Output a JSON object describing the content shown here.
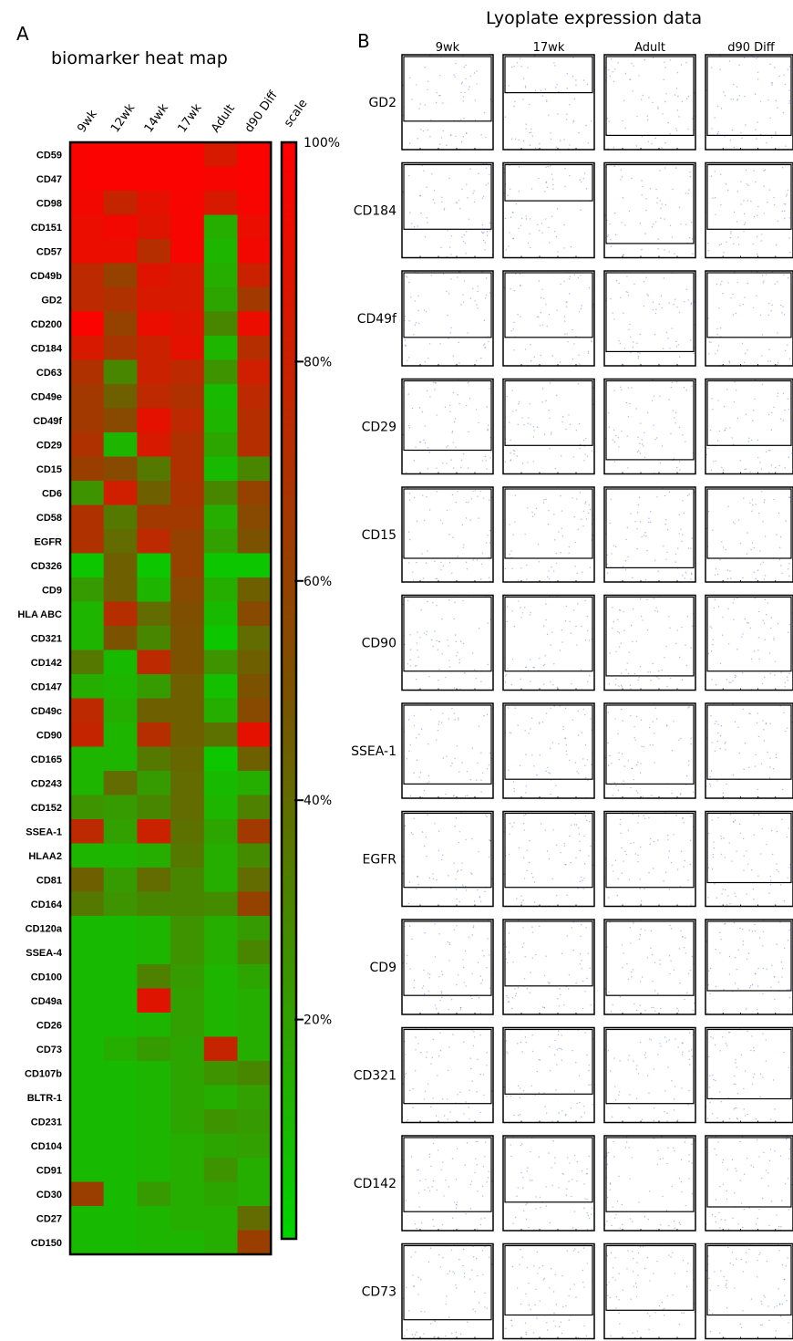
{
  "figure": {
    "panel_a_letter": "A",
    "panel_a_title": "biomarker heat map",
    "panel_b_letter": "B",
    "panel_b_title": "Lyoplate expression data"
  },
  "colors": {
    "low": "#00d400",
    "mid": "#7a5200",
    "high": "#ff0000",
    "border": "#000000"
  },
  "chart_data": [
    {
      "type": "heatmap",
      "title": "biomarker heat map",
      "columns": [
        "9wk",
        "12wk",
        "14wk",
        "17wk",
        "Adult",
        "d90 Diff"
      ],
      "rows": [
        "CD59",
        "CD47",
        "CD98",
        "CD151",
        "CD57",
        "CD49b",
        "GD2",
        "CD200",
        "CD184",
        "CD63",
        "CD49e",
        "CD49f",
        "CD29",
        "CD15",
        "CD6",
        "CD58",
        "EGFR",
        "CD326",
        "CD9",
        "HLA ABC",
        "CD321",
        "CD142",
        "CD147",
        "CD49c",
        "CD90",
        "CD165",
        "CD243",
        "CD152",
        "SSEA-1",
        "HLAA2",
        "CD81",
        "CD164",
        "CD120a",
        "SSEA-4",
        "CD100",
        "CD49a",
        "CD26",
        "CD73",
        "CD107b",
        "BLTR-1",
        "CD231",
        "CD104",
        "CD91",
        "CD30",
        "CD27",
        "CD150"
      ],
      "values": [
        [
          98,
          98,
          98,
          98,
          85,
          98
        ],
        [
          98,
          98,
          98,
          98,
          97,
          98
        ],
        [
          95,
          78,
          90,
          97,
          85,
          97
        ],
        [
          92,
          95,
          88,
          97,
          15,
          92
        ],
        [
          92,
          92,
          72,
          97,
          12,
          95
        ],
        [
          75,
          60,
          88,
          85,
          15,
          80
        ],
        [
          75,
          70,
          85,
          85,
          18,
          65
        ],
        [
          98,
          60,
          92,
          88,
          30,
          92
        ],
        [
          85,
          68,
          80,
          90,
          12,
          72
        ],
        [
          70,
          30,
          80,
          75,
          25,
          82
        ],
        [
          65,
          45,
          75,
          70,
          10,
          75
        ],
        [
          65,
          55,
          90,
          75,
          12,
          72
        ],
        [
          70,
          12,
          85,
          70,
          18,
          72
        ],
        [
          62,
          55,
          35,
          70,
          10,
          30
        ],
        [
          25,
          82,
          45,
          68,
          30,
          60
        ],
        [
          70,
          35,
          65,
          65,
          15,
          55
        ],
        [
          70,
          40,
          75,
          60,
          20,
          50
        ],
        [
          5,
          45,
          5,
          60,
          5,
          5
        ],
        [
          22,
          45,
          12,
          55,
          15,
          45
        ],
        [
          12,
          72,
          40,
          52,
          10,
          55
        ],
        [
          12,
          50,
          30,
          50,
          5,
          40
        ],
        [
          35,
          10,
          75,
          50,
          25,
          45
        ],
        [
          15,
          12,
          22,
          45,
          8,
          50
        ],
        [
          75,
          15,
          45,
          45,
          15,
          55
        ],
        [
          78,
          12,
          72,
          45,
          38,
          90
        ],
        [
          12,
          12,
          35,
          42,
          5,
          45
        ],
        [
          12,
          40,
          22,
          40,
          10,
          15
        ],
        [
          25,
          22,
          30,
          40,
          12,
          32
        ],
        [
          75,
          20,
          80,
          38,
          18,
          65
        ],
        [
          12,
          12,
          15,
          35,
          15,
          28
        ],
        [
          45,
          22,
          40,
          30,
          15,
          40
        ],
        [
          35,
          25,
          30,
          30,
          28,
          60
        ],
        [
          10,
          10,
          12,
          25,
          15,
          22
        ],
        [
          10,
          10,
          12,
          25,
          15,
          30
        ],
        [
          10,
          10,
          32,
          22,
          12,
          18
        ],
        [
          10,
          10,
          88,
          20,
          12,
          15
        ],
        [
          10,
          10,
          12,
          20,
          12,
          15
        ],
        [
          10,
          15,
          22,
          18,
          78,
          15
        ],
        [
          10,
          10,
          12,
          18,
          25,
          30
        ],
        [
          10,
          10,
          12,
          18,
          15,
          20
        ],
        [
          10,
          10,
          12,
          18,
          25,
          22
        ],
        [
          10,
          10,
          12,
          15,
          18,
          20
        ],
        [
          10,
          10,
          12,
          15,
          25,
          15
        ],
        [
          62,
          10,
          22,
          15,
          18,
          15
        ],
        [
          10,
          10,
          12,
          15,
          15,
          40
        ],
        [
          10,
          10,
          12,
          12,
          15,
          62
        ]
      ],
      "scale": {
        "label": "scale",
        "ticks": [
          "100%",
          "80%",
          "60%",
          "40%",
          "20%"
        ],
        "tick_values": [
          100,
          80,
          60,
          40,
          20
        ],
        "range": [
          0,
          100
        ]
      }
    },
    {
      "type": "scatter",
      "title": "Lyoplate expression data",
      "columns": [
        "9wk",
        "17wk",
        "Adult",
        "d90 Diff"
      ],
      "rows": [
        "GD2",
        "CD184",
        "CD49f",
        "CD29",
        "CD15",
        "CD90",
        "SSEA-1",
        "EGFR",
        "CD9",
        "CD321",
        "CD142",
        "CD73"
      ],
      "gate_fraction": [
        [
          0.3,
          0.6,
          0.15,
          0.15
        ],
        [
          0.3,
          0.6,
          0.15,
          0.3
        ],
        [
          0.3,
          0.3,
          0.15,
          0.3
        ],
        [
          0.25,
          0.3,
          0.15,
          0.3
        ],
        [
          0.25,
          0.25,
          0.15,
          0.25
        ],
        [
          0.2,
          0.2,
          0.15,
          0.2
        ],
        [
          0.15,
          0.2,
          0.15,
          0.2
        ],
        [
          0.2,
          0.2,
          0.2,
          0.25
        ],
        [
          0.2,
          0.3,
          0.2,
          0.25
        ],
        [
          0.2,
          0.3,
          0.2,
          0.25
        ],
        [
          0.2,
          0.3,
          0.2,
          0.25
        ],
        [
          0.2,
          0.25,
          0.3,
          0.25
        ]
      ],
      "populations": [
        [
          [
            0.25,
            0.55,
            0.1,
            0.3,
            0.55
          ],
          [
            0.4,
            0.55,
            0.15,
            0.35,
            0.85
          ],
          [
            0.3,
            0.2,
            0.35,
            0.08,
            0.4
          ],
          [
            0.5,
            0.4,
            0.05,
            0.35,
            0.35
          ]
        ],
        [
          [
            0.25,
            0.4,
            0.1,
            0.25,
            0.75
          ],
          [
            0.4,
            0.6,
            0.2,
            0.25,
            0.95
          ],
          [
            0.3,
            0.15,
            0.3,
            0.06,
            0.55
          ],
          [
            0.55,
            0.45,
            0.06,
            0.3,
            0.55
          ]
        ],
        [
          [
            0.25,
            0.45,
            0.12,
            0.2,
            0.75
          ],
          [
            0.4,
            0.55,
            0.2,
            0.18,
            0.85
          ],
          [
            0.4,
            0.15,
            0.35,
            0.06,
            0.55
          ],
          [
            0.55,
            0.45,
            0.06,
            0.3,
            0.55
          ]
        ],
        [
          [
            0.3,
            0.4,
            0.12,
            0.2,
            0.75
          ],
          [
            0.45,
            0.55,
            0.2,
            0.2,
            0.85
          ],
          [
            0.4,
            0.15,
            0.3,
            0.06,
            0.5
          ],
          [
            0.55,
            0.45,
            0.06,
            0.3,
            0.55
          ]
        ],
        [
          [
            0.3,
            0.4,
            0.1,
            0.28,
            0.6
          ],
          [
            0.4,
            0.55,
            0.15,
            0.3,
            0.7
          ],
          [
            0.45,
            0.15,
            0.3,
            0.06,
            0.55
          ],
          [
            0.55,
            0.35,
            0.06,
            0.25,
            0.55
          ]
        ],
        [
          [
            0.25,
            0.45,
            0.12,
            0.25,
            0.8
          ],
          [
            0.4,
            0.4,
            0.2,
            0.1,
            0.75
          ],
          [
            0.3,
            0.2,
            0.2,
            0.12,
            0.6
          ],
          [
            0.55,
            0.5,
            0.08,
            0.3,
            0.7
          ]
        ],
        [
          [
            0.3,
            0.35,
            0.14,
            0.2,
            0.65
          ],
          [
            0.45,
            0.35,
            0.25,
            0.18,
            0.75
          ],
          [
            0.4,
            0.15,
            0.3,
            0.06,
            0.5
          ],
          [
            0.55,
            0.35,
            0.08,
            0.25,
            0.6
          ]
        ],
        [
          [
            0.3,
            0.4,
            0.12,
            0.25,
            0.65
          ],
          [
            0.4,
            0.55,
            0.2,
            0.25,
            0.85
          ],
          [
            0.4,
            0.18,
            0.3,
            0.08,
            0.5
          ],
          [
            0.55,
            0.35,
            0.06,
            0.25,
            0.6
          ]
        ],
        [
          [
            0.3,
            0.15,
            0.12,
            0.08,
            0.55
          ],
          [
            0.45,
            0.55,
            0.18,
            0.28,
            0.8
          ],
          [
            0.45,
            0.2,
            0.3,
            0.1,
            0.45
          ],
          [
            0.55,
            0.35,
            0.06,
            0.25,
            0.6
          ]
        ],
        [
          [
            0.35,
            0.15,
            0.12,
            0.08,
            0.5
          ],
          [
            0.4,
            0.55,
            0.15,
            0.28,
            0.8
          ],
          [
            0.4,
            0.15,
            0.3,
            0.06,
            0.5
          ],
          [
            0.55,
            0.25,
            0.06,
            0.18,
            0.55
          ]
        ],
        [
          [
            0.35,
            0.25,
            0.12,
            0.15,
            0.55
          ],
          [
            0.4,
            0.55,
            0.15,
            0.28,
            0.8
          ],
          [
            0.4,
            0.2,
            0.3,
            0.1,
            0.5
          ],
          [
            0.55,
            0.3,
            0.06,
            0.22,
            0.55
          ]
        ],
        [
          [
            0.35,
            0.15,
            0.12,
            0.08,
            0.5
          ],
          [
            0.4,
            0.4,
            0.15,
            0.3,
            0.85
          ],
          [
            0.35,
            0.45,
            0.25,
            0.25,
            0.8
          ],
          [
            0.55,
            0.2,
            0.06,
            0.15,
            0.55
          ]
        ]
      ]
    }
  ]
}
